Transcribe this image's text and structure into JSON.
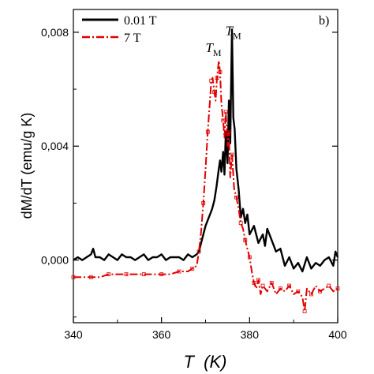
{
  "chart_data": {
    "type": "line",
    "panel_label": "b)",
    "xlabel_var": "T",
    "xlabel_unit": "(K)",
    "ylabel": "dM/dT (emu/g K)",
    "xlim": [
      340,
      400
    ],
    "ylim": [
      -0.0022,
      0.0088
    ],
    "x_ticks": [
      340,
      360,
      380,
      400
    ],
    "x_tick_labels": [
      "340",
      "360",
      "380",
      "400"
    ],
    "y_ticks": [
      0.0,
      0.004,
      0.008
    ],
    "y_tick_labels": [
      "0,000",
      "0,004",
      "0,008"
    ],
    "grid": false,
    "legend_position": "top-left",
    "annotations": [
      {
        "text": "T",
        "sub": "M",
        "x": 372.5,
        "y": 0.0073
      },
      {
        "text": "T",
        "sub": "M",
        "x": 377.0,
        "y": 0.0079
      }
    ],
    "series": [
      {
        "name": "0.01 T",
        "color": "#000000",
        "x": [
          340,
          341,
          342,
          343,
          344,
          344.5,
          345,
          346,
          347,
          348,
          349,
          350,
          351,
          352,
          353,
          354,
          355,
          356,
          357,
          358,
          359,
          360,
          361,
          362,
          363,
          364,
          365,
          366,
          367,
          368,
          368.5,
          369,
          369.5,
          370,
          370.5,
          371,
          371.5,
          372,
          372.5,
          373,
          373.3,
          373.6,
          374,
          374.3,
          374.6,
          375,
          375.3,
          375.6,
          376,
          376.3,
          376.6,
          377,
          377.5,
          378,
          378.5,
          379,
          379.5,
          380,
          381,
          382,
          383,
          383.5,
          384,
          385,
          386,
          387,
          388,
          389,
          390,
          391,
          392,
          393,
          394,
          395,
          396,
          397,
          398,
          399,
          399.5,
          400
        ],
        "y": [
          0.0,
          0.0001,
          0.0,
          0.0001,
          0.0002,
          0.0004,
          0.0001,
          0.0001,
          0.0,
          0.0002,
          0.0001,
          0.0,
          0.0002,
          0.0001,
          0.0001,
          0.0,
          0.0001,
          0.0002,
          0.0,
          0.0001,
          0.0001,
          0.0002,
          0.0,
          0.0001,
          0.0001,
          0.0001,
          0.0,
          0.0002,
          0.0001,
          0.0002,
          0.0003,
          0.0006,
          0.0009,
          0.0012,
          0.0014,
          0.0016,
          0.0018,
          0.0021,
          0.0026,
          0.0032,
          0.0035,
          0.0031,
          0.0038,
          0.003,
          0.0045,
          0.0034,
          0.0056,
          0.0041,
          0.0081,
          0.005,
          0.0046,
          0.0032,
          0.0025,
          0.0015,
          0.0018,
          0.0013,
          0.0016,
          0.0009,
          0.0012,
          0.0006,
          0.0009,
          0.0005,
          0.0011,
          0.0007,
          0.0003,
          0.0004,
          -0.0002,
          0.0001,
          -0.0003,
          -0.0001,
          -0.0004,
          0.0001,
          -0.0003,
          -0.0001,
          -0.0002,
          0.0,
          0.0001,
          -0.0002,
          0.0003,
          0.0001
        ]
      },
      {
        "name": "7 T",
        "color": "#e00000",
        "x": [
          340,
          342,
          344,
          346,
          348,
          350,
          352,
          354,
          356,
          358,
          360,
          362,
          364,
          366,
          367,
          368,
          368.5,
          369,
          369.5,
          370,
          370.5,
          371,
          371.3,
          371.6,
          372,
          372.3,
          372.6,
          373,
          373.3,
          373.6,
          374,
          374.3,
          374.6,
          375,
          375.3,
          375.6,
          376,
          376.5,
          377,
          377.5,
          378,
          378.5,
          379,
          379.5,
          380,
          380.5,
          381,
          381.5,
          382,
          382.5,
          383,
          384,
          385,
          386,
          387,
          388,
          389,
          390,
          391,
          392,
          392.5,
          393,
          394,
          395,
          396,
          397,
          398,
          399,
          400
        ],
        "y": [
          -0.0006,
          -0.0006,
          -0.0006,
          -0.0006,
          -0.0005,
          -0.0005,
          -0.0005,
          -0.0005,
          -0.0005,
          -0.0005,
          -0.0005,
          -0.0005,
          -0.0004,
          -0.0004,
          -0.0003,
          -0.0002,
          0.0003,
          0.001,
          0.002,
          0.0032,
          0.0045,
          0.0056,
          0.0063,
          0.0064,
          0.0059,
          0.0056,
          0.0064,
          0.007,
          0.0066,
          0.0055,
          0.0049,
          0.0043,
          0.0052,
          0.004,
          0.0045,
          0.0029,
          0.0037,
          0.0025,
          0.0022,
          0.0018,
          0.0013,
          0.0011,
          0.0007,
          0.0004,
          0.0001,
          -0.0004,
          -0.0008,
          -0.001,
          -0.0007,
          -0.0012,
          -0.0009,
          -0.0011,
          -0.0008,
          -0.0012,
          -0.001,
          -0.0011,
          -0.0009,
          -0.0012,
          -0.0011,
          -0.0013,
          -0.0018,
          -0.001,
          -0.0012,
          -0.0009,
          -0.0011,
          -0.001,
          -0.0009,
          -0.0011,
          -0.001
        ]
      }
    ]
  }
}
